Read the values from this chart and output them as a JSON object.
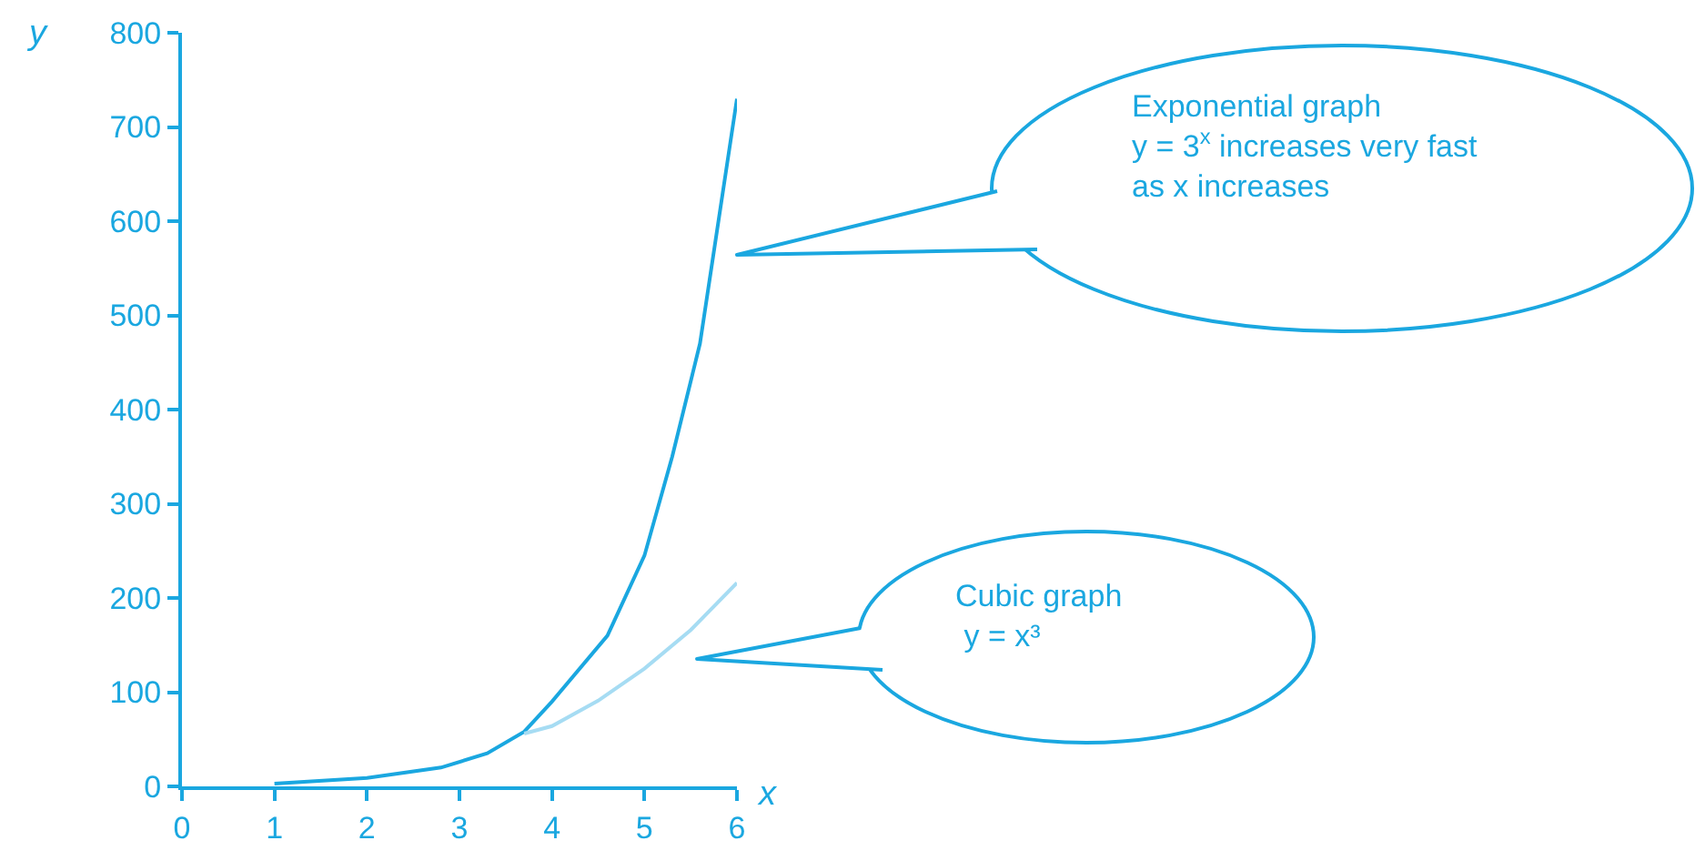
{
  "chart_data": {
    "type": "line",
    "xlabel": "x",
    "ylabel": "y",
    "series": [
      {
        "color": "#1aa7e0",
        "x": [
          1,
          2,
          2.8,
          3.3,
          3.7,
          4,
          4.6,
          5,
          5.3,
          5.6,
          6
        ],
        "values": [
          3,
          9,
          20,
          35,
          58,
          90,
          160,
          245,
          350,
          470,
          730
        ]
      },
      {
        "color": "#a6dcf3",
        "x": [
          3.7,
          4,
          4.5,
          5,
          5.5,
          6
        ],
        "values": [
          56,
          64,
          91,
          125,
          166,
          216
        ]
      }
    ],
    "xlim": [
      0,
      6
    ],
    "xticks": [
      0,
      1,
      2,
      3,
      4,
      5,
      6
    ],
    "ylim": [
      0,
      800
    ],
    "yticks": [
      0,
      100,
      200,
      300,
      400,
      500,
      600,
      700,
      800
    ],
    "annotations": [
      "Exponential graph\ny = 3$^{x}$ increases very fast\nas x increases",
      "Cubic graph\n y = x³"
    ],
    "grid": false
  }
}
